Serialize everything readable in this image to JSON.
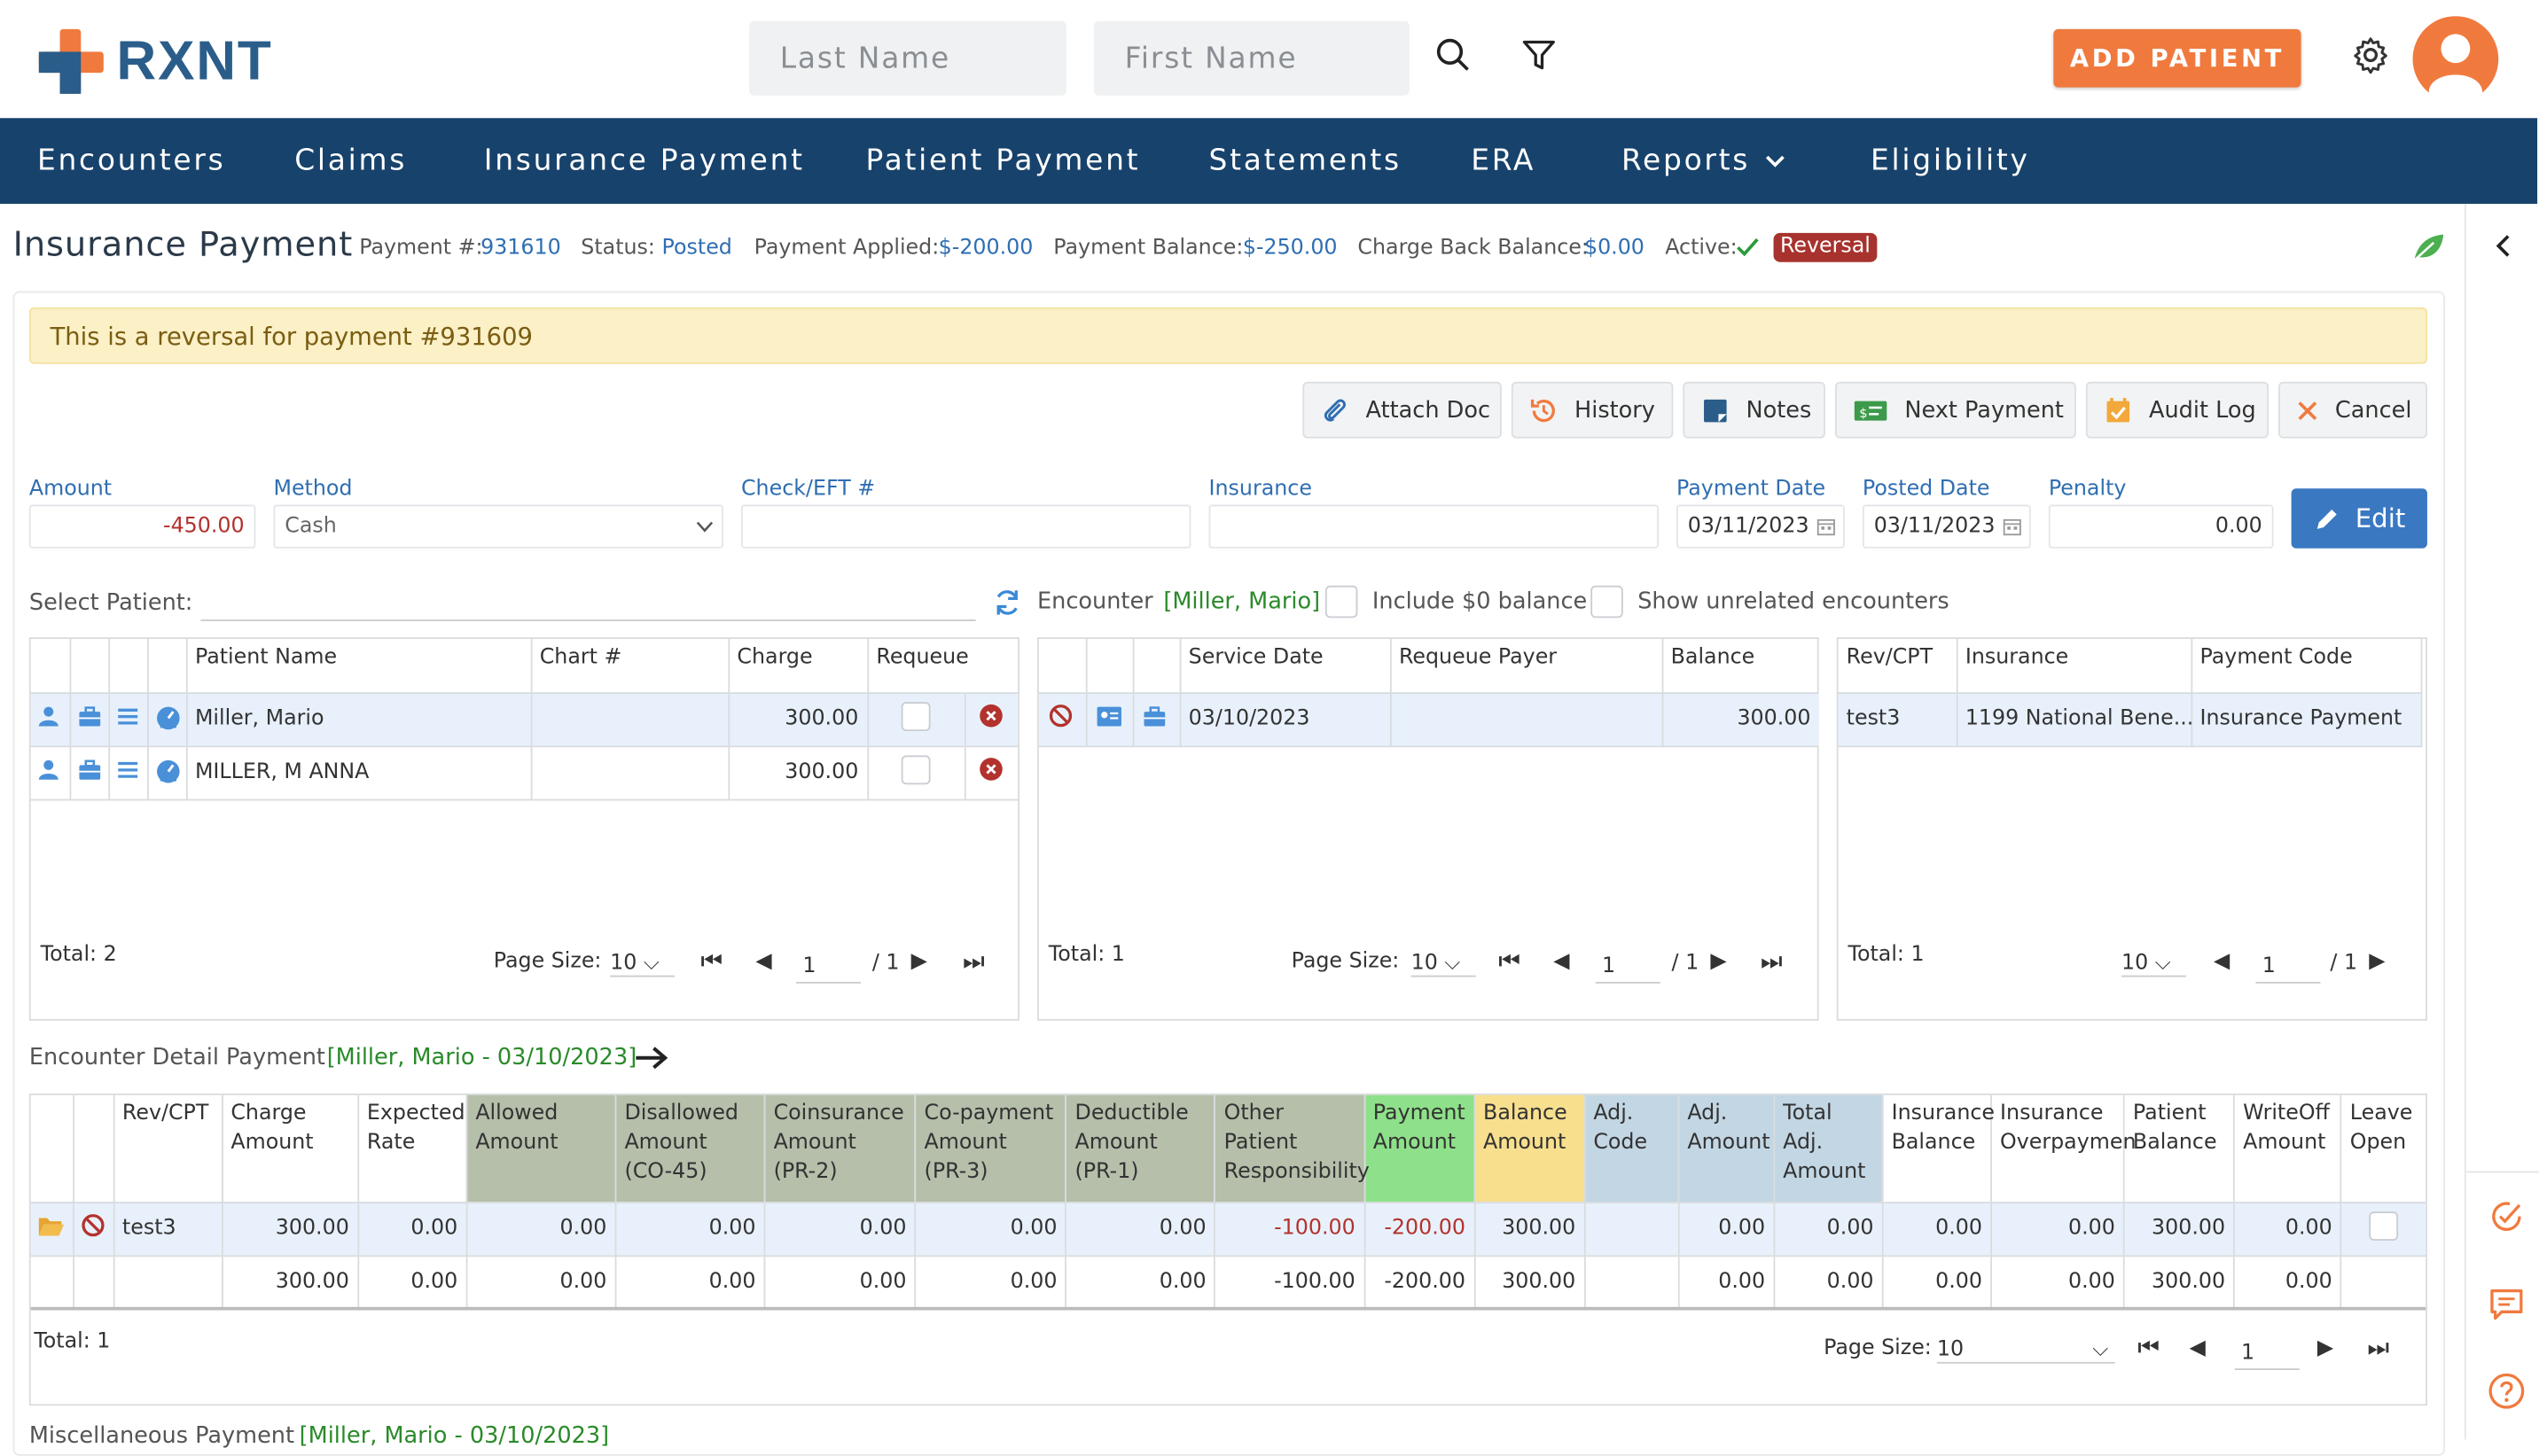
{
  "header": {
    "logo_text": "RXNT",
    "last_name_placeholder": "Last Name",
    "first_name_placeholder": "First Name",
    "add_patient_label": "ADD PATIENT"
  },
  "nav": {
    "items": [
      "Encounters",
      "Claims",
      "Insurance Payment",
      "Patient Payment",
      "Statements",
      "ERA",
      "Reports",
      "Eligibility"
    ]
  },
  "page": {
    "title": "Insurance Payment",
    "payment_no_label": "Payment #:",
    "payment_no": "931610",
    "status_label": "Status:",
    "status": "Posted",
    "applied_label": "Payment Applied:",
    "applied": "$-200.00",
    "balance_label": "Payment Balance:",
    "balance": "$-250.00",
    "chargeback_label": "Charge Back Balance:",
    "chargeback": "$0.00",
    "active_label": "Active:",
    "reversal_badge": "Reversal",
    "alert": "This is a reversal for payment #931609"
  },
  "toolbar": {
    "attach": "Attach Doc",
    "history": "History",
    "notes": "Notes",
    "next": "Next Payment",
    "audit": "Audit Log",
    "cancel": "Cancel"
  },
  "form": {
    "amount_label": "Amount",
    "amount": "-450.00",
    "method_label": "Method",
    "method": "Cash",
    "check_label": "Check/EFT #",
    "check": "",
    "insurance_label": "Insurance",
    "insurance": "",
    "payment_date_label": "Payment Date",
    "payment_date": "03/11/2023",
    "posted_date_label": "Posted Date",
    "posted_date": "03/11/2023",
    "penalty_label": "Penalty",
    "penalty": "0.00",
    "edit_label": "Edit"
  },
  "select_patient": {
    "label": "Select Patient:",
    "encounter_label": "Encounter",
    "encounter_value": "[Miller, Mario]",
    "include_zero": "Include $0 balance",
    "show_unrelated": "Show unrelated encounters"
  },
  "patients": {
    "headers": [
      "Patient Name",
      "Chart #",
      "Charge",
      "Requeue"
    ],
    "rows": [
      {
        "name": "Miller, Mario",
        "chart": "",
        "charge": "300.00"
      },
      {
        "name": "MILLER, M ANNA",
        "chart": "",
        "charge": "300.00"
      }
    ],
    "total": "Total: 2",
    "page_size_label": "Page Size:",
    "page_size": "10",
    "page": "1",
    "of": "/ 1"
  },
  "encounters": {
    "headers": [
      "Service Date",
      "Requeue Payer",
      "Balance"
    ],
    "rows": [
      {
        "date": "03/10/2023",
        "payer": "",
        "balance": "300.00"
      }
    ],
    "total": "Total: 1",
    "page_size_label": "Page Size:",
    "page_size": "10",
    "page": "1",
    "of": "/ 1"
  },
  "revcpt": {
    "headers": [
      "Rev/CPT",
      "Insurance",
      "Payment Code"
    ],
    "rows": [
      {
        "code": "test3",
        "insurance": "1199 National Bene...",
        "payment_code": "Insurance Payment"
      }
    ],
    "total": "Total: 1",
    "page_size": "10",
    "page": "1",
    "of": "/ 1"
  },
  "detail": {
    "label": "Encounter Detail Payment",
    "context": "[Miller, Mario - 03/10/2023]",
    "headers": {
      "rev": "Rev/CPT",
      "charge_1": "Charge",
      "charge_2": "Amount",
      "expected_1": "Expected",
      "expected_2": "Rate",
      "allowed_1": "Allowed",
      "allowed_2": "Amount",
      "disallowed_1": "Disallowed",
      "disallowed_2": "Amount",
      "disallowed_3": "(CO-45)",
      "coins_1": "Coinsurance",
      "coins_2": "Amount",
      "coins_3": "(PR-2)",
      "copay_1": "Co-payment",
      "copay_2": "Amount",
      "copay_3": "(PR-3)",
      "deduct_1": "Deductible",
      "deduct_2": "Amount",
      "deduct_3": "(PR-1)",
      "other_1": "Other",
      "other_2": "Patient",
      "other_3": "Responsibility",
      "payment_1": "Payment",
      "payment_2": "Amount",
      "balance_1": "Balance",
      "balance_2": "Amount",
      "adjcode_1": "Adj.",
      "adjcode_2": "Code",
      "adjamt_1": "Adj.",
      "adjamt_2": "Amount",
      "totadj_1": "Total Adj.",
      "totadj_2": "Amount",
      "insbal_1": "Insurance",
      "insbal_2": "Balance",
      "insover_1": "Insurance",
      "insover_2": "Overpaymen",
      "patbal_1": "Patient",
      "patbal_2": "Balance",
      "writeoff_1": "WriteOff",
      "writeoff_2": "Amount",
      "leave_1": "Leave",
      "leave_2": "Open"
    },
    "row": {
      "rev": "test3",
      "charge": "300.00",
      "expected": "0.00",
      "allowed": "0.00",
      "disallowed": "0.00",
      "coins": "0.00",
      "copay": "0.00",
      "deduct": "0.00",
      "other": "-100.00",
      "payment": "-200.00",
      "balance": "300.00",
      "adjcode": "",
      "adjamt": "0.00",
      "totadj": "0.00",
      "insbal": "0.00",
      "insover": "0.00",
      "patbal": "300.00",
      "writeoff": "0.00"
    },
    "totals": {
      "charge": "300.00",
      "expected": "0.00",
      "allowed": "0.00",
      "disallowed": "0.00",
      "coins": "0.00",
      "copay": "0.00",
      "deduct": "0.00",
      "other": "-100.00",
      "payment": "-200.00",
      "balance": "300.00",
      "adjcode": "",
      "adjamt": "0.00",
      "totadj": "0.00",
      "insbal": "0.00",
      "insover": "0.00",
      "patbal": "300.00",
      "writeoff": "0.00"
    },
    "total": "Total: 1",
    "page_size_label": "Page Size:",
    "page_size": "10",
    "page": "1"
  },
  "misc": {
    "label": "Miscellaneous Payment",
    "context": "[Miller, Mario - 03/10/2023]"
  },
  "colors": {
    "brand_orange": "#f07a3e",
    "nav_blue": "#17426b",
    "accent_blue": "#3a78c2",
    "alert_bg": "#fbf0c6",
    "reversal": "#a8322d"
  }
}
